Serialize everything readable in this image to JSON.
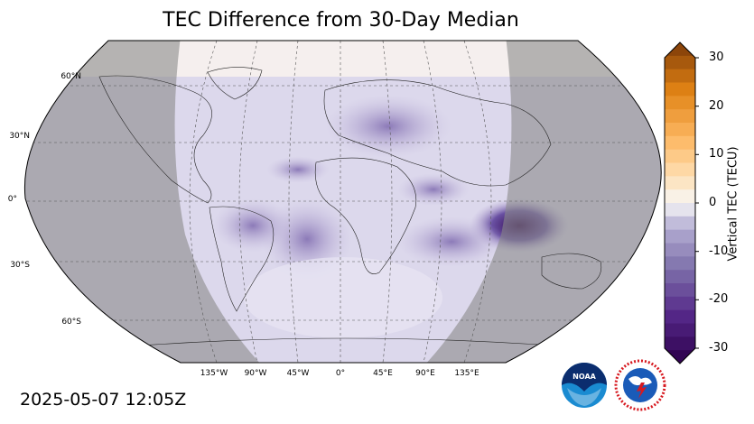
{
  "title": "TEC Difference from 30-Day Median",
  "timestamp": "2025-05-07 12:05Z",
  "map": {
    "projection": "robinson",
    "lat_labels": [
      "60°N",
      "30°N",
      "0°",
      "30°S",
      "60°S"
    ],
    "lon_labels": [
      "135°W",
      "90°W",
      "45°W",
      "0°",
      "45°E",
      "90°E",
      "135°E"
    ],
    "night_shading": true,
    "gridlines": "dashed"
  },
  "colorbar": {
    "label": "Vertical TEC (TECU)",
    "ticks": [
      "30",
      "20",
      "10",
      "0",
      "-10",
      "-20",
      "-30"
    ],
    "range": [
      -30,
      30
    ],
    "colormap": "PuOr_r",
    "colors": {
      "max": "#7f3b08",
      "mid": "#f7f7f7",
      "min": "#2d004b"
    }
  },
  "logos": {
    "noaa": {
      "text": "NOAA",
      "icon": "noaa-logo"
    },
    "nws": {
      "icon": "nws-logo"
    }
  }
}
